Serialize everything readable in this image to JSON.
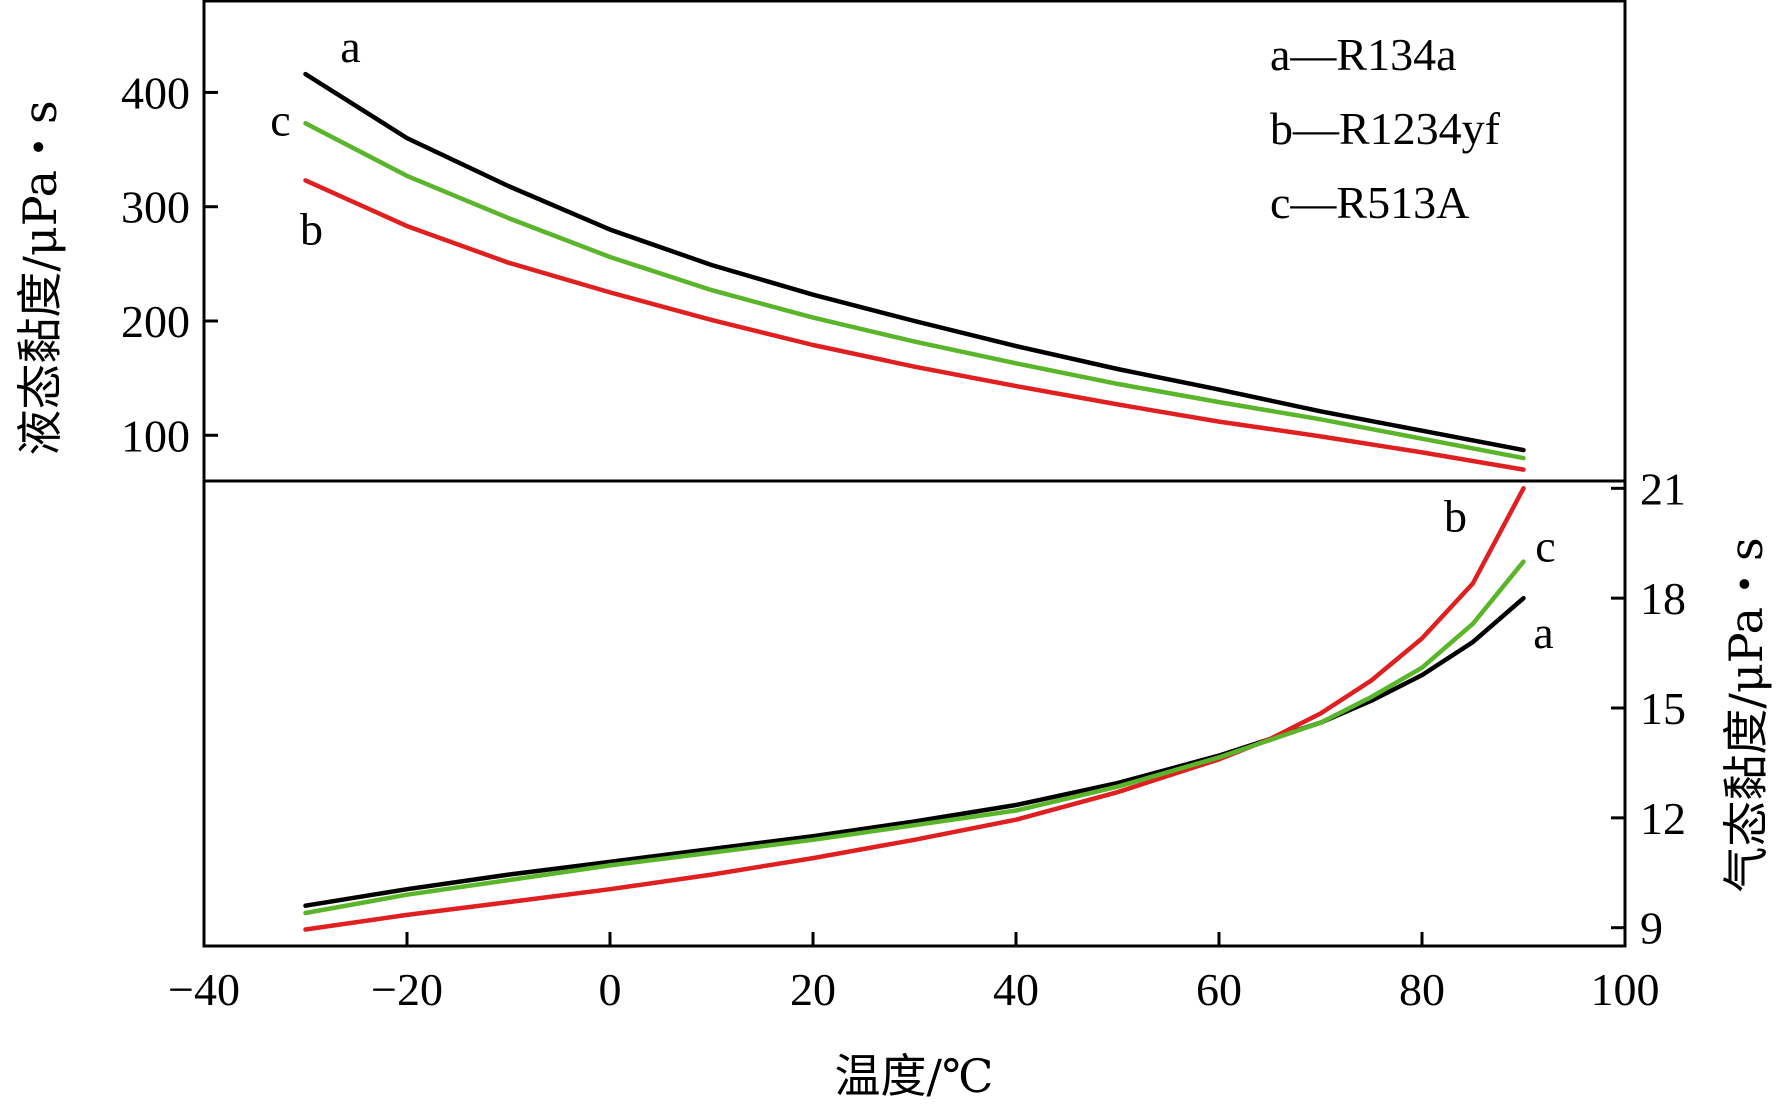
{
  "chart_data": [
    {
      "type": "line",
      "panel": "liquid",
      "ylabel": "液态黏度/μPa・s",
      "ylim": [
        60,
        480
      ],
      "yticks": [
        100,
        200,
        300,
        400
      ],
      "xlim": [
        -40,
        100
      ],
      "series": [
        {
          "name": "a—R134a",
          "label": "a",
          "color": "#000000",
          "x": [
            -30,
            -20,
            -10,
            0,
            10,
            20,
            30,
            40,
            50,
            60,
            70,
            80,
            90
          ],
          "values": [
            416,
            360,
            318,
            280,
            249,
            223,
            200,
            178,
            158,
            140,
            121,
            104,
            87
          ]
        },
        {
          "name": "b—R1234yf",
          "label": "b",
          "color": "#e02020",
          "x": [
            -30,
            -20,
            -10,
            0,
            10,
            20,
            30,
            40,
            50,
            60,
            70,
            80,
            90
          ],
          "values": [
            323,
            283,
            251,
            225,
            201,
            179,
            160,
            143,
            127,
            112,
            99,
            85,
            70
          ]
        },
        {
          "name": "c—R513A",
          "label": "c",
          "color": "#5ab52a",
          "x": [
            -30,
            -20,
            -10,
            0,
            10,
            20,
            30,
            40,
            50,
            60,
            70,
            80,
            90
          ],
          "values": [
            373,
            327,
            290,
            256,
            227,
            203,
            182,
            163,
            145,
            129,
            114,
            97,
            80
          ]
        }
      ]
    },
    {
      "type": "line",
      "panel": "vapor",
      "ylabel": "气态黏度/μPa・s",
      "ylim": [
        8.5,
        21.2
      ],
      "yticks": [
        9,
        12,
        15,
        18,
        21
      ],
      "xlim": [
        -40,
        100
      ],
      "series": [
        {
          "name": "a—R134a",
          "label": "a",
          "color": "#000000",
          "x": [
            -30,
            -20,
            -10,
            0,
            10,
            20,
            30,
            40,
            50,
            60,
            70,
            75,
            80,
            85,
            90
          ],
          "values": [
            9.6,
            10.05,
            10.45,
            10.8,
            11.15,
            11.5,
            11.9,
            12.35,
            12.95,
            13.7,
            14.6,
            15.2,
            15.9,
            16.8,
            18.0
          ]
        },
        {
          "name": "b—R1234yf",
          "label": "b",
          "color": "#e02020",
          "x": [
            -30,
            -20,
            -10,
            0,
            10,
            20,
            30,
            40,
            50,
            60,
            65,
            70,
            75,
            80,
            85,
            90
          ],
          "values": [
            8.95,
            9.35,
            9.7,
            10.05,
            10.45,
            10.9,
            11.4,
            11.95,
            12.7,
            13.6,
            14.15,
            14.85,
            15.75,
            16.9,
            18.4,
            21.0
          ]
        },
        {
          "name": "c—R513A",
          "label": "c",
          "color": "#5ab52a",
          "x": [
            -30,
            -20,
            -10,
            0,
            10,
            20,
            30,
            40,
            50,
            60,
            70,
            75,
            80,
            85,
            90
          ],
          "values": [
            9.4,
            9.9,
            10.3,
            10.7,
            11.05,
            11.4,
            11.8,
            12.2,
            12.85,
            13.65,
            14.6,
            15.3,
            16.1,
            17.3,
            19.0
          ]
        }
      ]
    }
  ],
  "xaxis": {
    "label": "温度/℃",
    "ticks": [
      -40,
      -20,
      0,
      20,
      40,
      60,
      80,
      100
    ],
    "tick_labels": [
      "−40",
      "−20",
      "0",
      "20",
      "40",
      "60",
      "80",
      "100"
    ]
  },
  "legend": {
    "position": "top-right",
    "entries": [
      "a—R134a",
      "b—R1234yf",
      "c—R513A"
    ]
  },
  "colors": {
    "a": "#000000",
    "b": "#e02020",
    "c": "#5ab52a"
  }
}
